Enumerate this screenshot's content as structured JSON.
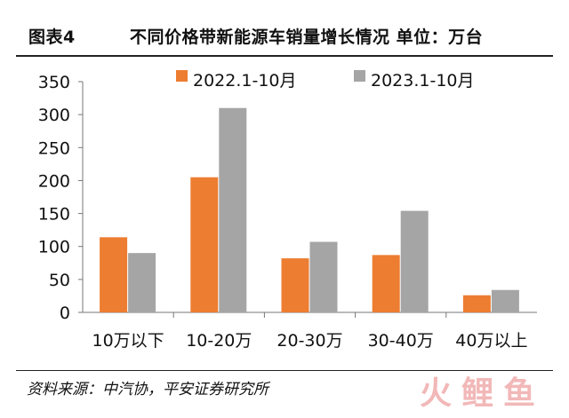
{
  "header": {
    "fig_no": "图表4",
    "fig_title": "不同价格带新能源车销量增长情况 单位：万台"
  },
  "footer": {
    "source": "资料来源：中汽协，平安证券研究所"
  },
  "watermark": {
    "chars": [
      "火",
      "鲤",
      "鱼"
    ]
  },
  "chart_data": {
    "type": "bar",
    "categories": [
      "10万以下",
      "10-20万",
      "20-30万",
      "30-40万",
      "40万以上"
    ],
    "series": [
      {
        "name": "2022.1-10月",
        "color": "#ED7D31",
        "values": [
          114,
          205,
          82,
          87,
          26
        ]
      },
      {
        "name": "2023.1-10月",
        "color": "#A5A5A5",
        "values": [
          90,
          310,
          107,
          154,
          34
        ]
      }
    ],
    "ylim": [
      0,
      350
    ],
    "yticks": [
      "0",
      "50",
      "100",
      "150",
      "200",
      "250",
      "300",
      "350"
    ],
    "legend_position": "top",
    "grid": false
  }
}
